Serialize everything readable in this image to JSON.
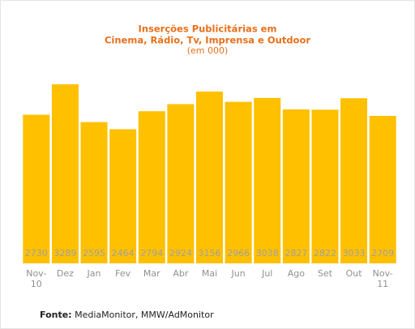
{
  "chart_data": {
    "type": "bar",
    "title": "Inserções Publicitárias em",
    "subtitle": "Cinema, Rádio, Tv, Imprensa e Outdoor",
    "unit_note": "(em 000)",
    "categories": [
      "Nov-10",
      "Dez",
      "Jan",
      "Fev",
      "Mar",
      "Abr",
      "Mai",
      "Jun",
      "Jul",
      "Ago",
      "Set",
      "Out",
      "Nov-11"
    ],
    "values": [
      2730,
      3289,
      2595,
      2464,
      2794,
      2924,
      3156,
      2966,
      3038,
      2827,
      2822,
      3033,
      2709
    ],
    "color": "#ffc000",
    "source_label": "Fonte:",
    "source": "MediaMonitor, MMW/AdMonitor"
  }
}
